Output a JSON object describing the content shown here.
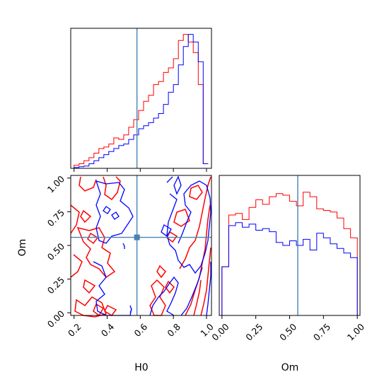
{
  "chart_data": {
    "type": "corner",
    "parameters": [
      "H0",
      "Om"
    ],
    "truths": {
      "H0": 0.58,
      "Om": 0.56
    },
    "truth_color": "#4682b4",
    "series": [
      {
        "color": "#ff0000",
        "hist_H0": {
          "bins": [
            0.2,
            0.23,
            0.26,
            0.29,
            0.32,
            0.35,
            0.38,
            0.41,
            0.44,
            0.47,
            0.5,
            0.53,
            0.56,
            0.59,
            0.62,
            0.65,
            0.68,
            0.71,
            0.74,
            0.77,
            0.8,
            0.83,
            0.86,
            0.89,
            0.92,
            0.95,
            0.98,
            1.01
          ],
          "heights": [
            0.02,
            0.03,
            0.05,
            0.07,
            0.1,
            0.13,
            0.14,
            0.16,
            0.2,
            0.19,
            0.22,
            0.27,
            0.32,
            0.38,
            0.44,
            0.48,
            0.55,
            0.57,
            0.63,
            0.66,
            0.72,
            0.84,
            0.88,
            0.83,
            0.76,
            0.55,
            0.03
          ]
        },
        "hist_Om": {
          "bins": [
            0.0,
            0.05,
            0.1,
            0.15,
            0.2,
            0.25,
            0.3,
            0.35,
            0.4,
            0.45,
            0.5,
            0.55,
            0.6,
            0.65,
            0.7,
            0.75,
            0.8,
            0.85,
            0.9,
            0.95,
            1.0
          ],
          "heights": [
            0.32,
            0.66,
            0.67,
            0.63,
            0.71,
            0.76,
            0.73,
            0.78,
            0.8,
            0.79,
            0.75,
            0.72,
            0.81,
            0.78,
            0.7,
            0.69,
            0.68,
            0.64,
            0.57,
            0.51,
            0.0
          ]
        }
      },
      {
        "color": "#0000ff",
        "hist_H0": {
          "bins": [
            0.2,
            0.23,
            0.26,
            0.29,
            0.32,
            0.35,
            0.38,
            0.41,
            0.44,
            0.47,
            0.5,
            0.53,
            0.56,
            0.59,
            0.62,
            0.65,
            0.68,
            0.71,
            0.74,
            0.77,
            0.8,
            0.83,
            0.86,
            0.89,
            0.92,
            0.95,
            0.98,
            1.01
          ],
          "heights": [
            0.005,
            0.01,
            0.015,
            0.03,
            0.05,
            0.07,
            0.09,
            0.11,
            0.13,
            0.15,
            0.16,
            0.19,
            0.22,
            0.26,
            0.28,
            0.3,
            0.33,
            0.36,
            0.42,
            0.5,
            0.55,
            0.68,
            0.8,
            0.88,
            0.83,
            0.7,
            0.03
          ]
        },
        "hist_Om": {
          "bins": [
            0.0,
            0.05,
            0.1,
            0.15,
            0.2,
            0.25,
            0.3,
            0.35,
            0.4,
            0.45,
            0.5,
            0.55,
            0.6,
            0.65,
            0.7,
            0.75,
            0.8,
            0.85,
            0.9,
            0.95,
            1.0
          ],
          "heights": [
            0.32,
            0.59,
            0.61,
            0.58,
            0.6,
            0.56,
            0.57,
            0.55,
            0.48,
            0.46,
            0.49,
            0.46,
            0.5,
            0.43,
            0.54,
            0.51,
            0.47,
            0.44,
            0.41,
            0.38,
            0.0
          ]
        }
      }
    ],
    "contour_levels": 2,
    "axes": {
      "H0": {
        "label": "H0",
        "range": [
          0.18,
          1.03
        ],
        "ticks": [
          0.2,
          0.4,
          0.6,
          0.8,
          1.0
        ],
        "tick_labels": [
          "0.2",
          "0.4",
          "0.6",
          "0.8",
          "1.0"
        ]
      },
      "Om": {
        "label": "Om",
        "range": [
          -0.02,
          1.02
        ],
        "ticks": [
          0.0,
          0.25,
          0.5,
          0.75,
          1.0
        ],
        "tick_labels": [
          "0.00",
          "0.25",
          "0.50",
          "0.75",
          "1.00"
        ]
      }
    }
  }
}
